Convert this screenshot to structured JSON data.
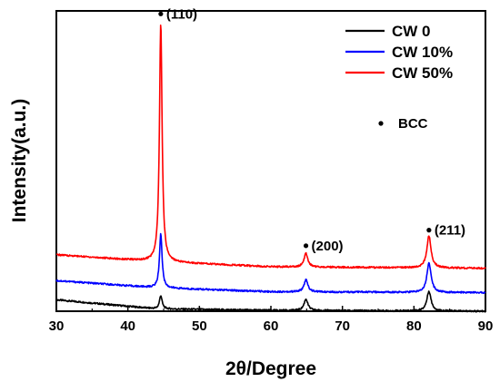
{
  "chart_data": {
    "type": "line",
    "xlabel": "2θ/Degree",
    "ylabel": "Intensity(a.u.)",
    "xlim": [
      30,
      90
    ],
    "ylim": [
      0,
      100
    ],
    "xticks": [
      "30",
      "40",
      "50",
      "60",
      "70",
      "80",
      "90"
    ],
    "xtick_values": [
      30,
      40,
      50,
      60,
      70,
      80,
      90
    ],
    "y_tick_labels_shown": false,
    "legend_position": "top-right",
    "series": [
      {
        "name": "CW 0",
        "color": "#000000",
        "baseline": [
          [
            30,
            3.8
          ],
          [
            44,
            0.8
          ],
          [
            60,
            0.3
          ],
          [
            90,
            0.0
          ]
        ],
        "peaks": [
          {
            "x": 44.6,
            "height": 4.5,
            "width": 0.22
          },
          {
            "x": 64.9,
            "height": 3.8,
            "width": 0.32
          },
          {
            "x": 82.1,
            "height": 6.6,
            "width": 0.35
          }
        ]
      },
      {
        "name": "CW 10%",
        "color": "#0000ff",
        "baseline": [
          [
            30,
            10.2
          ],
          [
            44,
            7.8
          ],
          [
            60,
            6.5
          ],
          [
            90,
            6.2
          ]
        ],
        "peaks": [
          {
            "x": 44.6,
            "height": 18.0,
            "width": 0.22
          },
          {
            "x": 64.9,
            "height": 4.0,
            "width": 0.32
          },
          {
            "x": 82.1,
            "height": 9.8,
            "width": 0.35
          }
        ]
      },
      {
        "name": "CW 50%",
        "color": "#ff0000",
        "baseline": [
          [
            30,
            18.8
          ],
          [
            44,
            16.5
          ],
          [
            60,
            14.8
          ],
          [
            90,
            14.3
          ]
        ],
        "peaks": [
          {
            "x": 44.6,
            "height": 79.5,
            "width": 0.22
          },
          {
            "x": 64.9,
            "height": 4.5,
            "width": 0.32
          },
          {
            "x": 82.1,
            "height": 10.7,
            "width": 0.35
          }
        ]
      }
    ],
    "annotations": [
      {
        "text": "(110)",
        "x": 44.6,
        "y": 99.0
      },
      {
        "text": "(200)",
        "x": 64.9,
        "y": 21.8
      },
      {
        "text": "(211)",
        "x": 82.1,
        "y": 27.0
      }
    ],
    "marker_legend": {
      "symbol": "•",
      "label": "BCC"
    }
  }
}
